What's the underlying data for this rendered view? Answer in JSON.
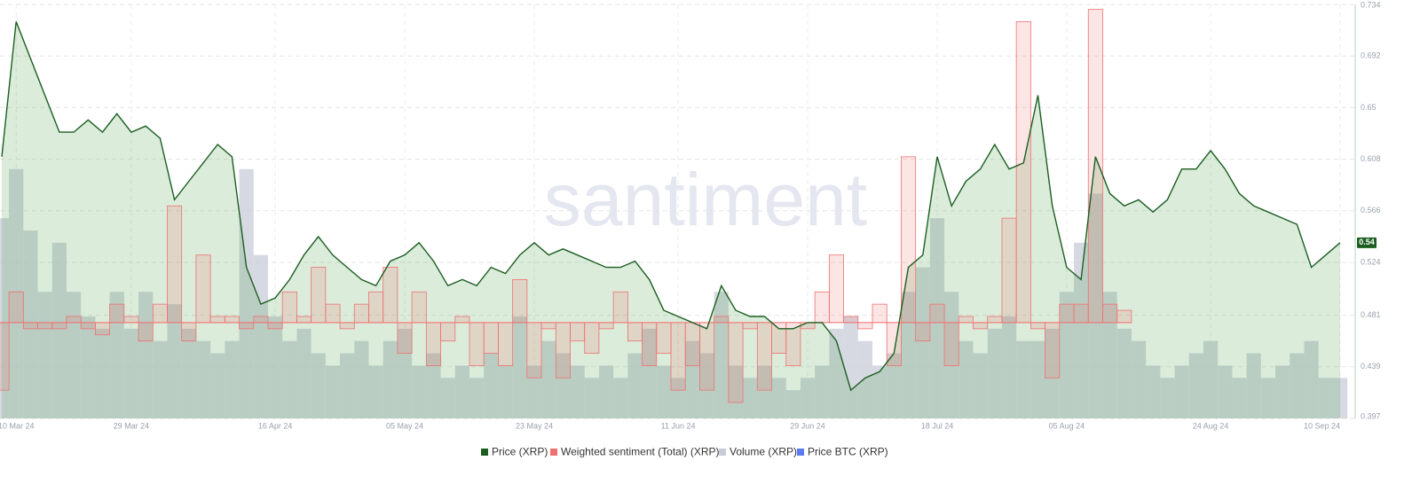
{
  "chart_data": {
    "type": "line",
    "watermark": "santiment",
    "categories": [
      null,
      "10 Mar 24",
      null,
      null,
      null,
      null,
      null,
      null,
      null,
      "29 Mar 24",
      null,
      null,
      null,
      null,
      null,
      null,
      null,
      null,
      null,
      "16 Apr 24",
      null,
      null,
      null,
      null,
      null,
      null,
      null,
      null,
      "05 May 24",
      null,
      null,
      null,
      null,
      null,
      null,
      null,
      null,
      "23 May 24",
      null,
      null,
      null,
      null,
      null,
      null,
      null,
      null,
      null,
      "11 Jun 24",
      null,
      null,
      null,
      null,
      null,
      null,
      null,
      null,
      "29 Jun 24",
      null,
      null,
      null,
      null,
      null,
      null,
      null,
      null,
      "18 Jul 24",
      null,
      null,
      null,
      null,
      null,
      null,
      null,
      null,
      "05 Aug 24",
      null,
      null,
      null,
      null,
      null,
      null,
      null,
      null,
      null,
      "24 Aug 24",
      null,
      null,
      null,
      null,
      null,
      null,
      null,
      null,
      "10 Sep 24"
    ],
    "ylim": [
      0.397,
      0.734
    ],
    "yticks": [
      0.397,
      0.439,
      0.481,
      0.524,
      0.566,
      0.608,
      0.65,
      0.692,
      0.734
    ],
    "grid": true,
    "sentiment_baseline": 0.475,
    "series": [
      {
        "name": "Price (XRP)",
        "color": "#1b5e20",
        "kind": "area-line",
        "values": [
          0.61,
          0.72,
          0.69,
          0.66,
          0.63,
          0.63,
          0.64,
          0.63,
          0.645,
          0.63,
          0.635,
          0.625,
          0.575,
          0.59,
          0.605,
          0.62,
          0.61,
          0.52,
          0.49,
          0.495,
          0.51,
          0.53,
          0.545,
          0.53,
          0.52,
          0.51,
          0.505,
          0.525,
          0.53,
          0.54,
          0.525,
          0.505,
          0.51,
          0.505,
          0.52,
          0.515,
          0.53,
          0.54,
          0.53,
          0.535,
          0.53,
          0.525,
          0.52,
          0.52,
          0.525,
          0.51,
          0.485,
          0.48,
          0.475,
          0.47,
          0.505,
          0.485,
          0.48,
          0.48,
          0.47,
          0.47,
          0.475,
          0.475,
          0.46,
          0.42,
          0.43,
          0.435,
          0.45,
          0.52,
          0.53,
          0.61,
          0.57,
          0.59,
          0.6,
          0.62,
          0.6,
          0.605,
          0.66,
          0.57,
          0.52,
          0.51,
          0.61,
          0.58,
          0.57,
          0.575,
          0.565,
          0.575,
          0.6,
          0.6,
          0.615,
          0.6,
          0.58,
          0.57,
          0.565,
          0.56,
          0.555,
          0.52,
          0.53,
          0.54
        ]
      },
      {
        "name": "Weighted sentiment (Total) (XRP)",
        "color": "#f07070",
        "kind": "step",
        "values": [
          0.42,
          0.5,
          0.47,
          0.47,
          0.47,
          0.48,
          0.47,
          0.465,
          0.49,
          0.48,
          0.46,
          0.49,
          0.57,
          0.46,
          0.53,
          0.48,
          0.48,
          0.47,
          0.48,
          0.47,
          0.5,
          0.48,
          0.52,
          0.49,
          0.47,
          0.49,
          0.5,
          0.52,
          0.45,
          0.5,
          0.44,
          0.46,
          0.48,
          0.44,
          0.45,
          0.44,
          0.51,
          0.43,
          0.47,
          0.43,
          0.46,
          0.45,
          0.47,
          0.5,
          0.46,
          0.44,
          0.45,
          0.42,
          0.44,
          0.42,
          0.48,
          0.41,
          0.47,
          0.42,
          0.45,
          0.44,
          0.47,
          0.5,
          0.53,
          0.48,
          0.47,
          0.49,
          0.44,
          0.61,
          0.46,
          0.49,
          0.44,
          0.48,
          0.47,
          0.48,
          0.56,
          0.72,
          0.47,
          0.43,
          0.49,
          0.49,
          0.73,
          0.49,
          0.485,
          null,
          null,
          null,
          null,
          null,
          null,
          null,
          null,
          null,
          null,
          null,
          null,
          null,
          null,
          null
        ]
      },
      {
        "name": "Volume (XRP)",
        "color": "#c8ccd8",
        "kind": "bars",
        "values": [
          0.56,
          0.6,
          0.55,
          0.5,
          0.54,
          0.5,
          0.48,
          0.47,
          0.5,
          0.47,
          0.5,
          0.46,
          0.49,
          0.47,
          0.46,
          0.45,
          0.46,
          0.6,
          0.53,
          0.48,
          0.46,
          0.47,
          0.45,
          0.44,
          0.45,
          0.46,
          0.44,
          0.46,
          0.47,
          0.44,
          0.45,
          0.43,
          0.44,
          0.43,
          0.45,
          0.44,
          0.48,
          0.44,
          0.46,
          0.45,
          0.44,
          0.43,
          0.44,
          0.43,
          0.45,
          0.47,
          0.44,
          0.43,
          0.46,
          0.45,
          0.5,
          0.44,
          0.43,
          0.44,
          0.43,
          0.42,
          0.43,
          0.44,
          0.47,
          0.48,
          0.46,
          0.44,
          0.45,
          0.5,
          0.52,
          0.56,
          0.5,
          0.46,
          0.45,
          0.47,
          0.48,
          0.46,
          0.46,
          0.47,
          0.5,
          0.54,
          0.58,
          0.5,
          0.47,
          0.46,
          0.44,
          0.43,
          0.44,
          0.45,
          0.46,
          0.44,
          0.43,
          0.45,
          0.43,
          0.44,
          0.45,
          0.46,
          0.43,
          0.43
        ]
      },
      {
        "name": "Price BTC (XRP)",
        "color": "#5a7cf0",
        "kind": "hidden",
        "values": [
          null,
          null,
          null,
          null,
          null,
          null,
          null,
          null,
          null,
          null,
          null,
          null,
          null,
          null,
          null,
          null,
          null,
          null,
          null,
          null,
          null,
          null,
          null,
          null,
          null,
          null,
          null,
          null,
          null,
          null,
          null,
          null,
          null,
          null,
          null,
          null,
          null,
          null,
          null,
          null,
          null,
          null,
          null,
          null,
          null,
          null,
          null,
          null,
          null,
          null,
          null,
          null,
          null,
          null,
          null,
          null,
          null,
          null,
          null,
          null,
          null,
          null,
          null,
          null,
          null,
          null,
          null,
          null,
          null,
          null,
          null,
          null,
          null,
          null,
          null,
          null,
          null,
          null,
          null,
          null,
          null,
          null,
          null,
          null,
          null,
          null,
          null,
          null,
          null,
          null,
          null,
          null,
          null,
          null
        ]
      }
    ]
  }
}
